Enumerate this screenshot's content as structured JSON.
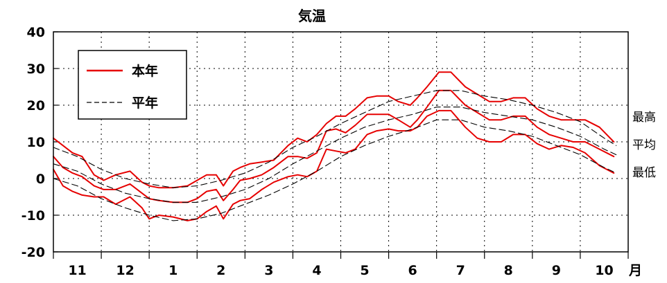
{
  "chart_data": {
    "type": "line",
    "title": "気温",
    "xlabel": "月",
    "ylabel": "",
    "ylim": [
      -20,
      40
    ],
    "y_ticks": [
      "40",
      "30",
      "20",
      "10",
      "0",
      "-10",
      "-20"
    ],
    "x_tick_months": [
      "11",
      "12",
      "1",
      "2",
      "3",
      "4",
      "5",
      "6",
      "7",
      "8",
      "9",
      "10"
    ],
    "x_unit": "month",
    "grid": true,
    "legend": {
      "position": "top-left",
      "entries": [
        {
          "label": "本年",
          "color": "#e60000",
          "style": "solid"
        },
        {
          "label": "平年",
          "color": "#000000",
          "style": "dashed"
        }
      ]
    },
    "side_labels": [
      "最高",
      "平均",
      "最低"
    ],
    "series": [
      {
        "legend": "本年",
        "stat": "最高",
        "color": "#e60000",
        "style": "solid",
        "x": [
          0.0,
          0.2,
          0.4,
          0.6,
          0.85,
          1.05,
          1.3,
          1.6,
          1.85,
          2.0,
          2.2,
          2.5,
          2.8,
          3.0,
          3.2,
          3.4,
          3.55,
          3.75,
          3.9,
          4.1,
          4.35,
          4.6,
          4.9,
          5.1,
          5.3,
          5.5,
          5.7,
          5.9,
          6.1,
          6.3,
          6.55,
          6.75,
          7.0,
          7.2,
          7.45,
          7.6,
          7.8,
          8.05,
          8.3,
          8.6,
          8.85,
          9.1,
          9.35,
          9.6,
          9.85,
          10.1,
          10.35,
          10.6,
          10.85,
          11.1,
          11.4,
          11.7
        ],
        "y": [
          11,
          9,
          7,
          6,
          1,
          -0.5,
          1,
          2,
          -1,
          -2,
          -2.5,
          -2.5,
          -2,
          -0.5,
          1,
          1,
          -2,
          2,
          3,
          4,
          4.5,
          5,
          9,
          11,
          10,
          12,
          15,
          17,
          17,
          19,
          22,
          22.5,
          22.5,
          21,
          20,
          22,
          25,
          29,
          29,
          25,
          23,
          21,
          21,
          22,
          22,
          19,
          17,
          16,
          16,
          16,
          14,
          10
        ]
      },
      {
        "legend": "本年",
        "stat": "平均",
        "color": "#e60000",
        "style": "solid",
        "x": [
          0.0,
          0.2,
          0.4,
          0.6,
          0.85,
          1.05,
          1.3,
          1.6,
          1.85,
          2.0,
          2.2,
          2.5,
          2.8,
          3.0,
          3.2,
          3.4,
          3.55,
          3.75,
          3.9,
          4.1,
          4.35,
          4.6,
          4.9,
          5.1,
          5.3,
          5.5,
          5.7,
          5.9,
          6.1,
          6.3,
          6.55,
          6.75,
          7.0,
          7.2,
          7.45,
          7.6,
          7.8,
          8.05,
          8.3,
          8.6,
          8.85,
          9.1,
          9.35,
          9.6,
          9.85,
          10.1,
          10.35,
          10.6,
          10.85,
          11.1,
          11.4,
          11.7
        ],
        "y": [
          6,
          3,
          1.5,
          0.5,
          -2,
          -3,
          -3,
          -1.5,
          -4,
          -5.5,
          -6,
          -6.5,
          -6.5,
          -5.5,
          -3.5,
          -3,
          -6,
          -3,
          -0.5,
          0,
          1,
          3,
          6,
          6,
          5.5,
          7,
          13,
          13.5,
          12.5,
          14.5,
          17.5,
          17.5,
          17.5,
          16,
          14,
          16,
          19.5,
          24,
          24,
          20,
          18,
          16,
          16,
          17,
          17,
          14,
          12,
          11,
          10,
          10,
          8,
          6
        ]
      },
      {
        "legend": "本年",
        "stat": "最低",
        "color": "#e60000",
        "style": "solid",
        "x": [
          0.0,
          0.2,
          0.4,
          0.6,
          0.85,
          1.05,
          1.3,
          1.6,
          1.85,
          2.0,
          2.2,
          2.5,
          2.8,
          3.0,
          3.2,
          3.4,
          3.55,
          3.75,
          3.9,
          4.1,
          4.35,
          4.6,
          4.9,
          5.1,
          5.3,
          5.5,
          5.7,
          5.9,
          6.1,
          6.3,
          6.55,
          6.75,
          7.0,
          7.2,
          7.45,
          7.6,
          7.8,
          8.05,
          8.3,
          8.6,
          8.85,
          9.1,
          9.35,
          9.6,
          9.85,
          10.1,
          10.35,
          10.6,
          10.85,
          11.1,
          11.4,
          11.7
        ],
        "y": [
          2.5,
          -2,
          -3.5,
          -4.5,
          -5,
          -5,
          -7,
          -5,
          -8,
          -11,
          -10,
          -10.5,
          -11.5,
          -11,
          -9,
          -7.5,
          -11,
          -7,
          -6,
          -5.5,
          -3,
          -1,
          0.5,
          1,
          0.5,
          2,
          8,
          7.5,
          7,
          8,
          12,
          13,
          13.5,
          13,
          13,
          14,
          17,
          18.5,
          18.5,
          14,
          11,
          10,
          10,
          12,
          12,
          9.5,
          8,
          9,
          8.5,
          7,
          3.5,
          1.5
        ]
      },
      {
        "legend": "平年",
        "stat": "最高",
        "color": "#000000",
        "style": "dashed",
        "x": [
          0,
          0.5,
          1.0,
          1.5,
          2.0,
          2.5,
          3.0,
          3.5,
          4.0,
          4.5,
          5.0,
          5.5,
          6.0,
          6.5,
          7.0,
          7.5,
          8.0,
          8.5,
          9.0,
          9.5,
          10.0,
          10.5,
          11.0,
          11.5,
          11.75
        ],
        "y": [
          8.5,
          6,
          2.5,
          0,
          -1.5,
          -2.5,
          -2,
          -0.5,
          1.5,
          4.5,
          8.5,
          11.5,
          15,
          18,
          21,
          22.5,
          24,
          24,
          22.5,
          21.5,
          20,
          18,
          15.5,
          11,
          9
        ]
      },
      {
        "legend": "平年",
        "stat": "平均",
        "color": "#000000",
        "style": "dashed",
        "x": [
          0,
          0.5,
          1.0,
          1.5,
          2.0,
          2.5,
          3.0,
          3.5,
          4.0,
          4.5,
          5.0,
          5.5,
          6.0,
          6.5,
          7.0,
          7.5,
          8.0,
          8.5,
          9.0,
          9.5,
          10.0,
          10.5,
          11.0,
          11.5,
          11.75
        ],
        "y": [
          4,
          2,
          -1.5,
          -4,
          -5.5,
          -6.5,
          -6.5,
          -5,
          -3,
          0,
          4,
          7.5,
          11,
          14,
          16,
          17.5,
          19.5,
          19.5,
          18,
          17,
          16,
          14,
          11.5,
          8,
          6.5
        ]
      },
      {
        "legend": "平年",
        "stat": "最低",
        "color": "#000000",
        "style": "dashed",
        "x": [
          0,
          0.5,
          1.0,
          1.5,
          2.0,
          2.5,
          3.0,
          3.5,
          4.0,
          4.5,
          5.0,
          5.5,
          6.0,
          6.5,
          7.0,
          7.5,
          8.0,
          8.5,
          9.0,
          9.5,
          10.0,
          10.5,
          11.0,
          11.5,
          11.75
        ],
        "y": [
          0,
          -2,
          -5.5,
          -8,
          -10,
          -11.5,
          -11,
          -9.5,
          -7,
          -4.5,
          -1.5,
          2,
          6,
          9,
          11.5,
          13.5,
          16,
          16,
          14,
          13,
          11.5,
          9,
          6.5,
          3,
          1.5
        ]
      }
    ]
  }
}
